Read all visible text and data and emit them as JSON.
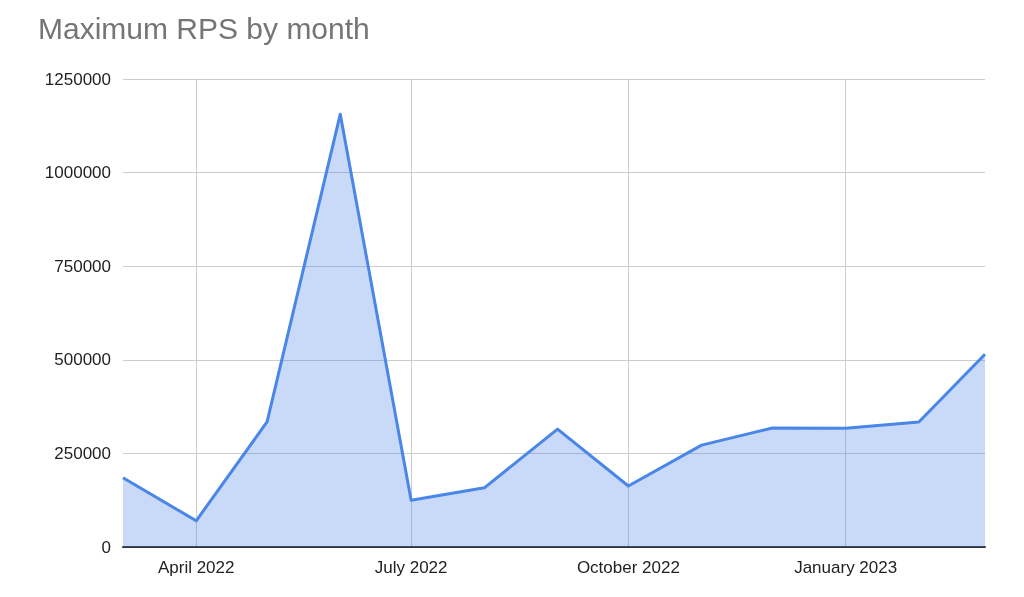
{
  "chart_data": {
    "type": "area",
    "title": "Maximum RPS by month",
    "x": [
      "2022-03",
      "2022-04",
      "2022-05",
      "2022-06",
      "2022-07",
      "2022-08",
      "2022-09",
      "2022-10",
      "2022-11",
      "2022-12",
      "2023-01",
      "2023-02",
      "2023-03"
    ],
    "series": [
      {
        "color": "#4a86e8",
        "values": [
          185000,
          70000,
          334000,
          1156000,
          125000,
          158000,
          315000,
          163000,
          272000,
          318000,
          317000,
          334000,
          515000
        ]
      }
    ],
    "xlim": [
      "2022-03",
      "2023-03"
    ],
    "xticks": [
      {
        "value": "2022-04",
        "label": "April 2022"
      },
      {
        "value": "2022-07",
        "label": "July 2022"
      },
      {
        "value": "2022-10",
        "label": "October 2022"
      },
      {
        "value": "2023-01",
        "label": "January 2023"
      }
    ],
    "ylim": [
      0,
      1250000
    ],
    "yticks": [
      0,
      250000,
      500000,
      750000,
      1000000,
      1250000
    ],
    "grid": true,
    "marker": "none",
    "line_style": "solid"
  }
}
